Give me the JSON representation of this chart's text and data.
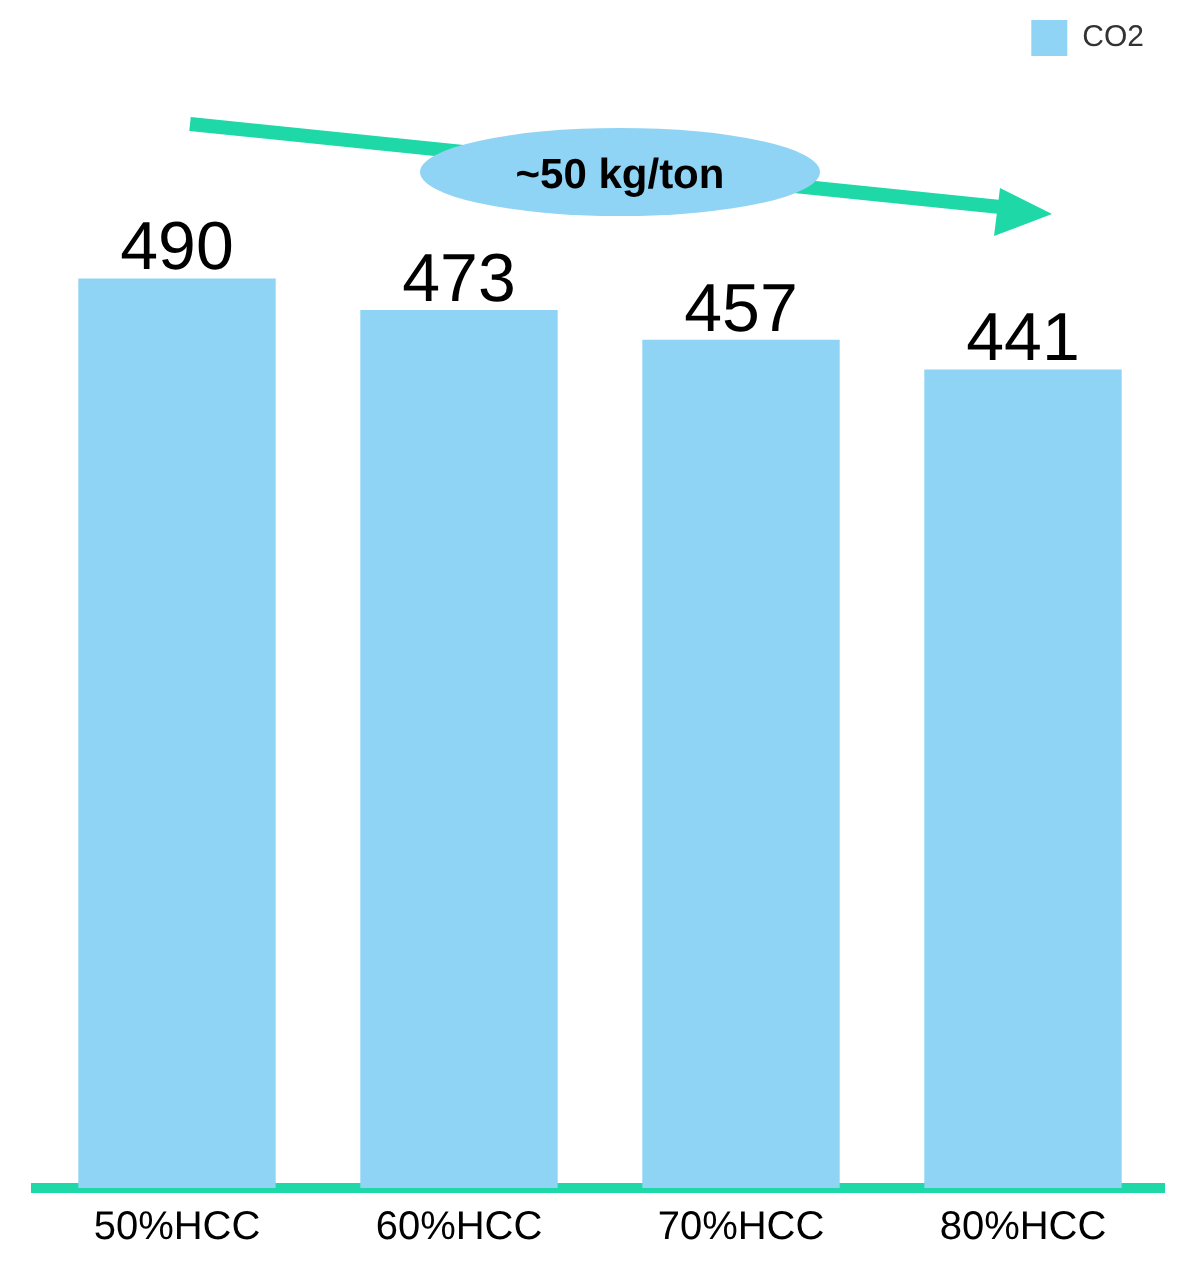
{
  "chart_data": {
    "type": "bar",
    "categories": [
      "50%HCC",
      "60%HCC",
      "70%HCC",
      "80%HCC"
    ],
    "series": [
      {
        "name": "CO2",
        "color": "#8fd4f4",
        "values": [
          490,
          473,
          457,
          441
        ]
      }
    ],
    "data_labels": true,
    "legend": "top right",
    "annotations": [
      "~50 kg/ton"
    ]
  }
}
